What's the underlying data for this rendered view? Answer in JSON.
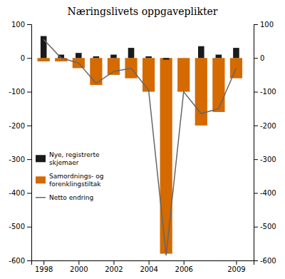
{
  "chart_data": {
    "type": "bar",
    "title": "Næringslivets oppgaveplikter",
    "x": [
      1998,
      1999,
      2000,
      2001,
      2002,
      2003,
      2004,
      2005,
      2006,
      2007,
      2008,
      2009
    ],
    "series": [
      {
        "name": "Nye, registrerte\nskjemaer",
        "type": "bar",
        "color": "#1a1a1a",
        "values": [
          65,
          10,
          15,
          5,
          10,
          30,
          5,
          -5,
          0,
          35,
          10,
          30
        ]
      },
      {
        "name": "Samordnings- og\nforenklingstiltak",
        "type": "bar",
        "color": "#D46A00",
        "values": [
          -10,
          -10,
          -30,
          -80,
          -50,
          -60,
          -100,
          -580,
          -100,
          -200,
          -160,
          -60
        ]
      },
      {
        "name": "Netto endring",
        "type": "line",
        "color": "#666666",
        "values": [
          55,
          0,
          -15,
          -75,
          -40,
          -30,
          -95,
          -585,
          -100,
          -165,
          -150,
          -30
        ]
      }
    ],
    "xlim": [
      1997.3,
      2010.0
    ],
    "xticks": [
      1998,
      2000,
      2002,
      2004,
      2006,
      2009
    ],
    "ylim": [
      -600,
      100
    ],
    "yticks": [
      -600,
      -500,
      -400,
      -300,
      -200,
      -100,
      0,
      100
    ],
    "y2lim": [
      -600,
      100
    ],
    "y2ticks": [
      -600,
      -500,
      -400,
      -300,
      -200,
      -100,
      0,
      100
    ],
    "legend": "left",
    "grid": false
  }
}
